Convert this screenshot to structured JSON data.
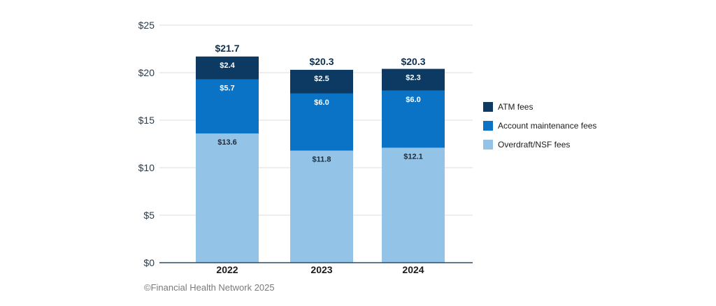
{
  "footer": {
    "credit": "©Financial Health Network 2025"
  },
  "chart_data": {
    "type": "bar",
    "stacked": true,
    "categories": [
      "2022",
      "2023",
      "2024"
    ],
    "series": [
      {
        "name": "Overdraft/NSF fees",
        "color": "#93c4e8",
        "label_color": "#1b2b3b",
        "values": [
          13.6,
          11.8,
          12.1
        ],
        "labels": [
          "$13.6",
          "$11.8",
          "$12.1"
        ]
      },
      {
        "name": "Account maintenance fees",
        "color": "#0b73c6",
        "label_color": "#ffffff",
        "values": [
          5.7,
          6.0,
          6.0
        ],
        "labels": [
          "$5.7",
          "$6.0",
          "$6.0"
        ]
      },
      {
        "name": "ATM fees",
        "color": "#0c3a63",
        "label_color": "#ffffff",
        "values": [
          2.4,
          2.5,
          2.3
        ],
        "labels": [
          "$2.4",
          "$2.5",
          "$2.3"
        ]
      }
    ],
    "totals": [
      21.7,
      20.3,
      20.3
    ],
    "total_labels": [
      "$21.7",
      "$20.3",
      "$20.3"
    ],
    "y_ticks": [
      0,
      5,
      10,
      15,
      20,
      25
    ],
    "y_tick_labels": [
      "$0",
      "$5",
      "$10",
      "$15",
      "$20",
      "$25"
    ],
    "ylim": [
      0,
      25
    ],
    "grid": true,
    "legend_position": "right",
    "legend_order": [
      "ATM fees",
      "Account maintenance fees",
      "Overdraft/NSF fees"
    ],
    "title": "",
    "xlabel": "",
    "ylabel": ""
  }
}
